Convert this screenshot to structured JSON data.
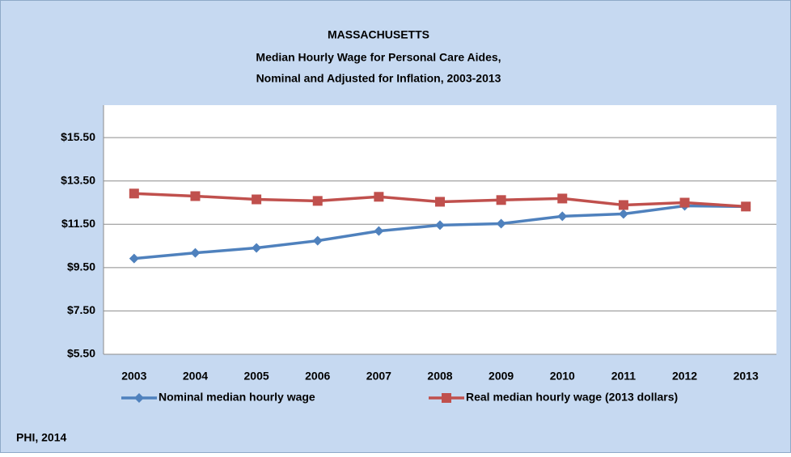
{
  "chart_data": {
    "type": "line",
    "title": [
      "MASSACHUSETTS",
      "Median Hourly Wage for Personal Care Aides,",
      "Nominal and Adjusted for Inflation, 2003-2013"
    ],
    "source": "PHI, 2014",
    "categories": [
      "2003",
      "2004",
      "2005",
      "2006",
      "2007",
      "2008",
      "2009",
      "2010",
      "2011",
      "2012",
      "2013"
    ],
    "series": [
      {
        "name": "Nominal median hourly wage",
        "color": "#4f81bd",
        "marker": "diamond",
        "values": [
          9.92,
          10.18,
          10.41,
          10.74,
          11.19,
          11.46,
          11.53,
          11.87,
          11.98,
          12.35,
          12.32
        ]
      },
      {
        "name": "Real median hourly wage (2013 dollars)",
        "color": "#c0504d",
        "marker": "square",
        "values": [
          12.92,
          12.8,
          12.65,
          12.58,
          12.77,
          12.54,
          12.62,
          12.69,
          12.39,
          12.5,
          12.32
        ]
      }
    ],
    "ylim": [
      5.5,
      17
    ],
    "yticks": [
      {
        "value": 5.5,
        "label": "$5.50"
      },
      {
        "value": 7.5,
        "label": "$7.50"
      },
      {
        "value": 9.5,
        "label": "$9.50"
      },
      {
        "value": 11.5,
        "label": "$11.50"
      },
      {
        "value": 13.5,
        "label": "$13.50"
      },
      {
        "value": 15.5,
        "label": "$15.50"
      }
    ],
    "grid": true,
    "legend": "bottom"
  }
}
